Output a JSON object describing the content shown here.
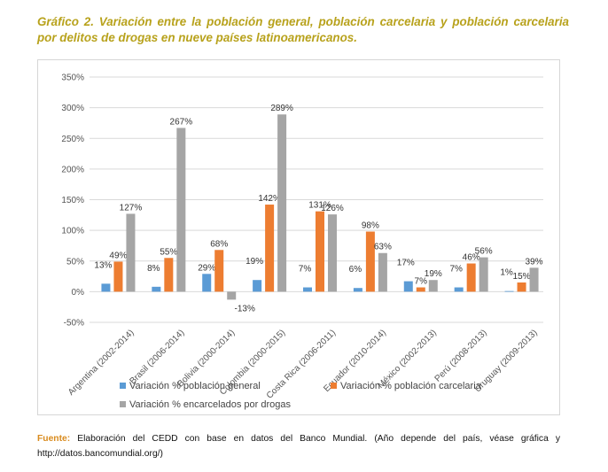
{
  "title": "Gráfico 2. Variación entre la población general, población carcelaria y población carcelaria por delitos de drogas en nueve países latinoamericanos.",
  "source": {
    "label": "Fuente:",
    "text": "Elaboración del CEDD con base en datos del Banco Mundial. (Año depende del país, véase gráfica y http://datos.bancomundial.org/)"
  },
  "chart_data": {
    "type": "bar",
    "categories": [
      "Argentina (2002-2014)",
      "Brasil (2006-2014)",
      "Bolivia (2000-2014)",
      "Colombia (2000-2015)",
      "Costa Rica (2006-2011)",
      "Ecuador (2010-2014)",
      "México (2002-2013)",
      "Perú (2008-2013)",
      "Uruguay (2009-2013)"
    ],
    "series": [
      {
        "name": "Variación % población general",
        "color": "#5b9bd5",
        "values": [
          13,
          8,
          29,
          19,
          7,
          6,
          17,
          7,
          1
        ],
        "labels": [
          "13%",
          "8%",
          "29%",
          "19%",
          "7%",
          "6%",
          "17%",
          "7%",
          "1%"
        ]
      },
      {
        "name": "Variación % población carcelaria",
        "color": "#ed7d31",
        "values": [
          49,
          55,
          68,
          142,
          131,
          98,
          7,
          46,
          15
        ],
        "labels": [
          "49%",
          "55%",
          "68%",
          "142%",
          "131%",
          "98%",
          "7%",
          "46%",
          "15%"
        ]
      },
      {
        "name": "Variación % encarcelados por drogas",
        "color": "#a5a5a5",
        "values": [
          127,
          267,
          -13,
          289,
          126,
          63,
          19,
          56,
          39
        ],
        "labels": [
          "127%",
          "267%",
          "-13%",
          "289%",
          "126%",
          "63%",
          "19%",
          "56%",
          "39%"
        ]
      }
    ],
    "ylim": [
      -50,
      350
    ],
    "yticks": [
      "-50%",
      "0%",
      "50%",
      "100%",
      "150%",
      "200%",
      "250%",
      "300%",
      "350%"
    ],
    "ytick_values": [
      -50,
      0,
      50,
      100,
      150,
      200,
      250,
      300,
      350
    ],
    "grid": true,
    "legend_position": "bottom"
  }
}
